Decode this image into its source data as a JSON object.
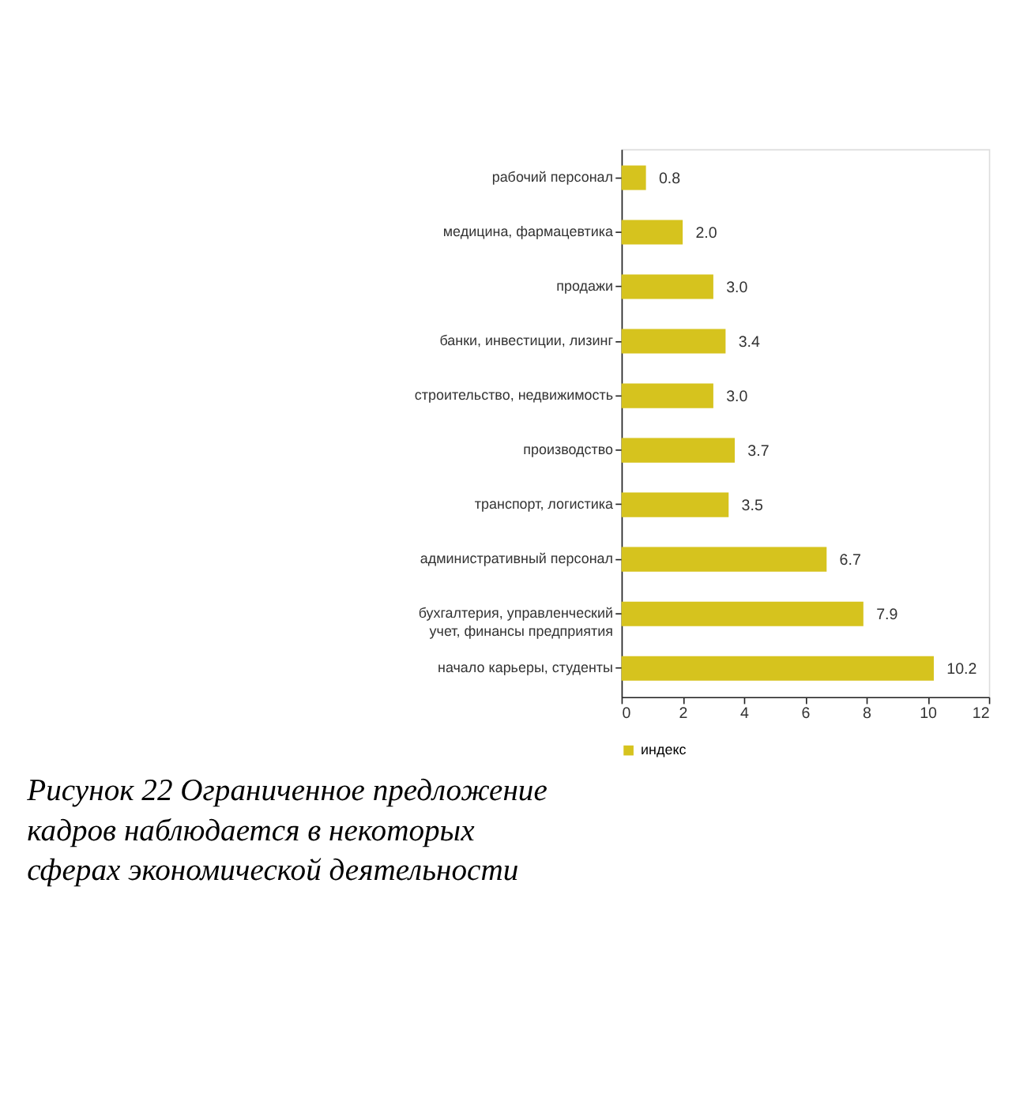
{
  "chart_data": {
    "type": "bar",
    "orientation": "horizontal",
    "categories": [
      "рабочий персонал",
      "медицина, фармацевтика",
      "продажи",
      "банки, инвестиции, лизинг",
      "строительство, недвижимость",
      "производство",
      "транспорт, логистика",
      "административный персонал",
      "бухгалтерия, управленческий учет, финансы предприятия",
      "начало карьеры, студенты"
    ],
    "series": [
      {
        "name": "индекс",
        "color": "#d6c31e",
        "values": [
          0.8,
          2.0,
          3.0,
          3.4,
          3.0,
          3.7,
          3.5,
          6.7,
          7.9,
          10.2
        ],
        "value_labels": [
          "0.8",
          "2.0",
          "3.0",
          "3.4",
          "3.0",
          "3.7",
          "3.5",
          "6.7",
          "7.9",
          "10.2"
        ]
      }
    ],
    "xlim": [
      0,
      12
    ],
    "xticks": [
      0,
      2,
      4,
      6,
      8,
      10,
      12
    ],
    "grid": false,
    "legend": "bottom",
    "annotations": [
      "Рисунок 22 Ограниченное предложение кадров наблюдается в некоторых сферах экономической деятельности"
    ]
  }
}
